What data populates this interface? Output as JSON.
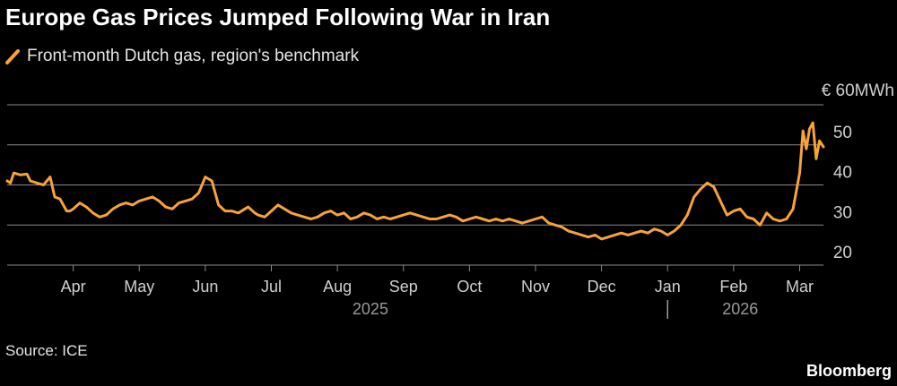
{
  "title": "Europe Gas Prices Jumped Following War in Iran",
  "legend_label": "Front-month Dutch gas, region's benchmark",
  "source": "Source: ICE",
  "brand": "Bloomberg",
  "colors": {
    "series": "#f7a337",
    "grid": "#8a8a8a",
    "axis_text": "#cfcfcf",
    "background": "#000000"
  },
  "chart_data": {
    "type": "line",
    "title": "Europe Gas Prices Jumped Following War in Iran",
    "ylabel": "€ 60MWh",
    "unit_label": "€ 60MWh",
    "ylim": [
      20,
      60
    ],
    "yticks": [
      20,
      30,
      40,
      50
    ],
    "xlim": [
      0,
      12.36
    ],
    "x_unit": "months since 2025-03-01",
    "month_ticks": [
      {
        "label": "Apr",
        "x": 1
      },
      {
        "label": "May",
        "x": 2
      },
      {
        "label": "Jun",
        "x": 3
      },
      {
        "label": "Jul",
        "x": 4
      },
      {
        "label": "Aug",
        "x": 5
      },
      {
        "label": "Sep",
        "x": 6
      },
      {
        "label": "Oct",
        "x": 7
      },
      {
        "label": "Nov",
        "x": 8
      },
      {
        "label": "Dec",
        "x": 9
      },
      {
        "label": "Jan",
        "x": 10
      },
      {
        "label": "Feb",
        "x": 11
      },
      {
        "label": "Mar",
        "x": 12
      }
    ],
    "year_labels": [
      {
        "label": "2025",
        "x": 5.5
      },
      {
        "label": "2026",
        "x": 11.1
      }
    ],
    "year_divider_x": 10,
    "grid": true,
    "series": [
      {
        "name": "Front-month Dutch gas, region's benchmark",
        "x": [
          0.0,
          0.05,
          0.1,
          0.2,
          0.3,
          0.35,
          0.45,
          0.55,
          0.65,
          0.72,
          0.8,
          0.9,
          0.95,
          1.0,
          1.1,
          1.2,
          1.3,
          1.4,
          1.5,
          1.6,
          1.7,
          1.8,
          1.9,
          2.0,
          2.1,
          2.2,
          2.3,
          2.4,
          2.5,
          2.6,
          2.7,
          2.8,
          2.9,
          3.0,
          3.1,
          3.2,
          3.3,
          3.4,
          3.5,
          3.6,
          3.65,
          3.75,
          3.8,
          3.9,
          4.0,
          4.1,
          4.2,
          4.3,
          4.4,
          4.5,
          4.6,
          4.7,
          4.8,
          4.9,
          5.0,
          5.1,
          5.2,
          5.3,
          5.4,
          5.5,
          5.6,
          5.7,
          5.8,
          5.9,
          6.0,
          6.1,
          6.2,
          6.3,
          6.4,
          6.5,
          6.6,
          6.7,
          6.8,
          6.9,
          7.0,
          7.1,
          7.2,
          7.3,
          7.4,
          7.5,
          7.6,
          7.7,
          7.8,
          7.9,
          8.0,
          8.1,
          8.2,
          8.3,
          8.4,
          8.5,
          8.6,
          8.7,
          8.8,
          8.9,
          9.0,
          9.1,
          9.2,
          9.3,
          9.4,
          9.5,
          9.6,
          9.7,
          9.8,
          9.9,
          10.0,
          10.1,
          10.2,
          10.3,
          10.4,
          10.5,
          10.6,
          10.7,
          10.8,
          10.9,
          11.0,
          11.1,
          11.2,
          11.3,
          11.4,
          11.5,
          11.6,
          11.7,
          11.8,
          11.9,
          12.0,
          12.05,
          12.1,
          12.15,
          12.2,
          12.25,
          12.3,
          12.36
        ],
        "values": [
          41.0,
          40.5,
          43.0,
          42.5,
          42.7,
          41.0,
          40.5,
          40.0,
          42.0,
          37.0,
          36.5,
          33.5,
          33.5,
          34.0,
          35.5,
          34.5,
          33.0,
          32.0,
          32.5,
          34.0,
          35.0,
          35.5,
          35.0,
          36.0,
          36.5,
          37.0,
          36.0,
          34.5,
          34.0,
          35.5,
          36.0,
          36.5,
          38.0,
          42.0,
          41.0,
          35.0,
          33.5,
          33.5,
          33.0,
          34.0,
          34.5,
          33.0,
          32.5,
          32.0,
          33.5,
          35.0,
          34.0,
          33.0,
          32.5,
          32.0,
          31.5,
          32.0,
          33.0,
          33.5,
          32.5,
          33.0,
          31.5,
          32.0,
          33.0,
          32.5,
          31.5,
          32.0,
          31.5,
          32.0,
          32.5,
          33.0,
          32.5,
          32.0,
          31.5,
          31.5,
          32.0,
          32.5,
          32.0,
          31.0,
          31.5,
          32.0,
          31.5,
          31.0,
          31.5,
          31.0,
          31.5,
          31.0,
          30.5,
          31.0,
          31.5,
          32.0,
          30.5,
          30.0,
          29.5,
          28.5,
          28.0,
          27.5,
          27.0,
          27.5,
          26.5,
          27.0,
          27.5,
          28.0,
          27.5,
          28.0,
          28.5,
          28.0,
          29.0,
          28.5,
          27.5,
          28.5,
          30.0,
          32.5,
          37.0,
          39.0,
          40.5,
          39.5,
          36.0,
          32.5,
          33.5,
          34.0,
          32.0,
          31.5,
          30.0,
          33.0,
          31.5,
          31.0,
          31.5,
          34.0,
          43.0,
          53.5,
          49.0,
          54.0,
          55.5,
          46.5,
          51.0,
          49.5
        ]
      }
    ]
  }
}
